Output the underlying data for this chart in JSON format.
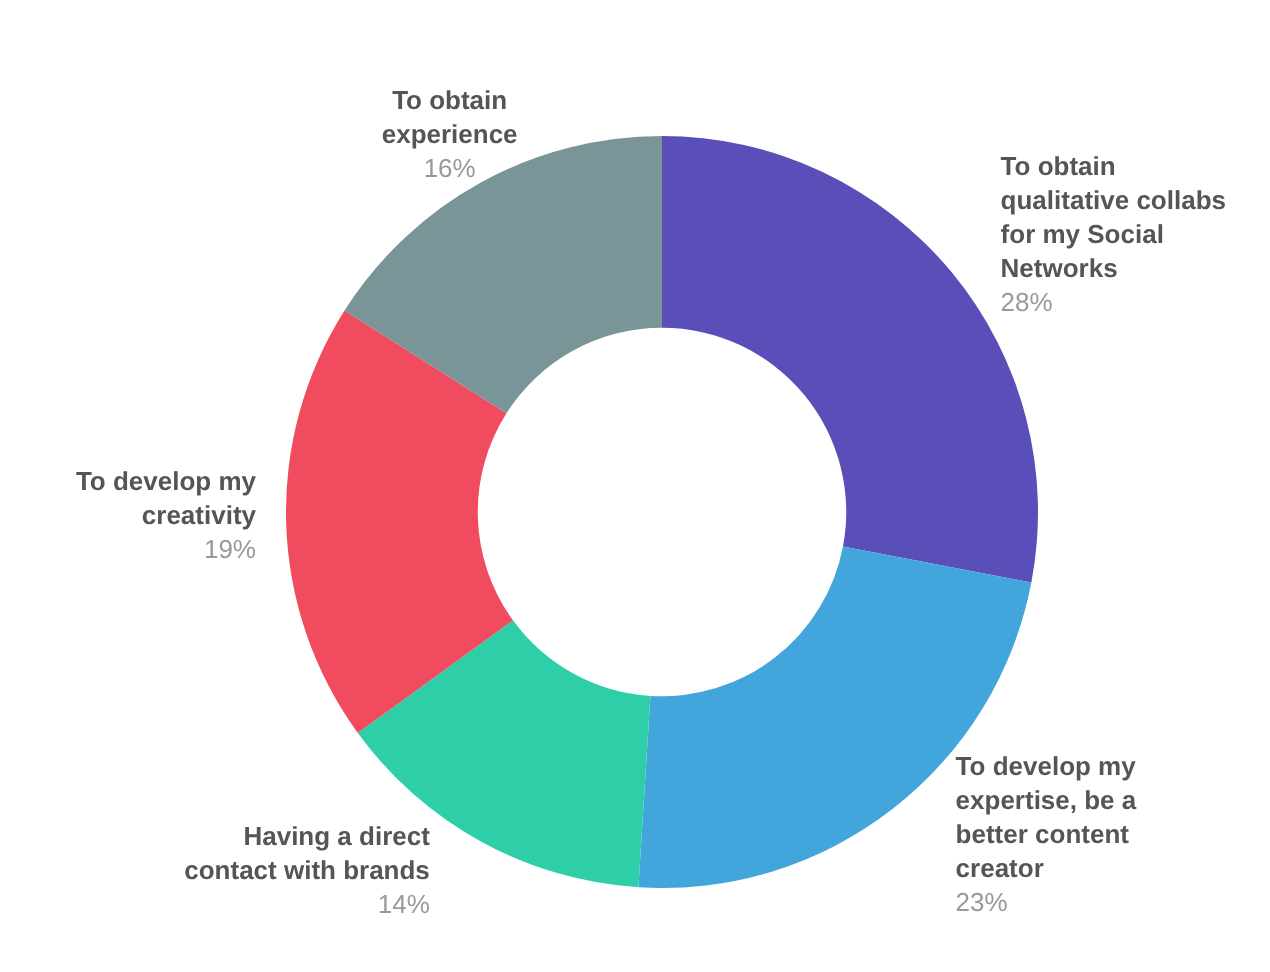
{
  "chart_data": {
    "type": "donut",
    "categories": [
      "To obtain qualitative collabs for my Social Networks",
      "To develop my expertise, be a better content creator",
      "Having a direct contact with brands",
      "To develop my creativity",
      "To obtain experience"
    ],
    "values": [
      28,
      23,
      14,
      19,
      16
    ],
    "value_labels": [
      "28%",
      "23%",
      "14%",
      "19%",
      "16%"
    ],
    "colors": [
      "#5a4fb8",
      "#42a5dc",
      "#2ecfa8",
      "#f04b5f",
      "#7a9598"
    ]
  }
}
